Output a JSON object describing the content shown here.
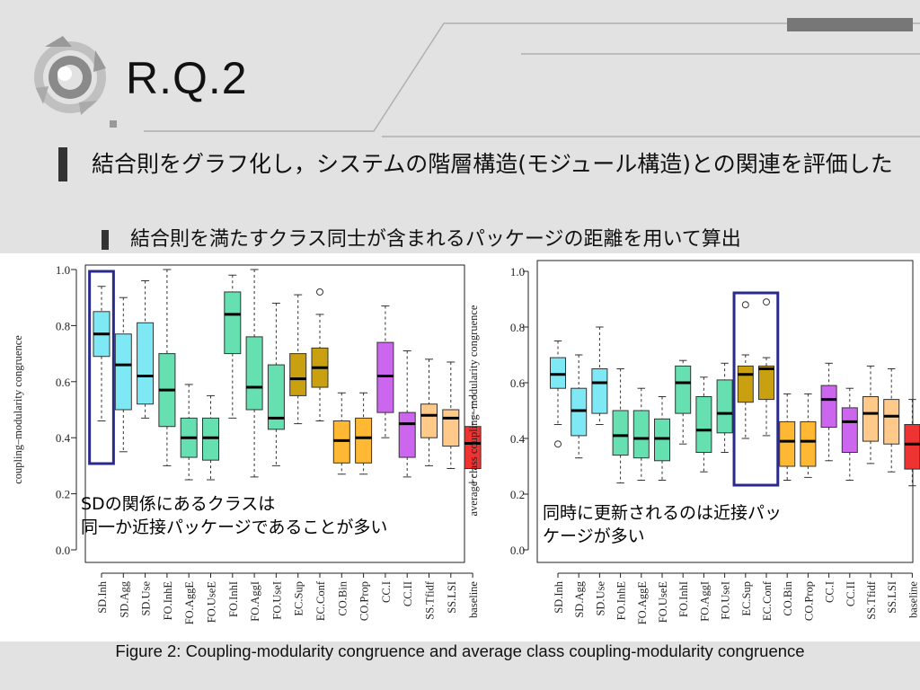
{
  "slide": {
    "title": "R.Q.2",
    "bullet1": "結合則をグラフ化し，システムの階層構造(モジュール構造)との関連を評価した",
    "bullet2": "結合則を満たすクラス同士が含まれるパッケージの距離を用いて算出",
    "caption": "Figure 2: Coupling-modularity congruence and average class coupling-modularity congruence",
    "annotation_left_line1": "SDの関係にあるクラスは",
    "annotation_left_line2": "同一か近接パッケージであることが多い",
    "annotation_right_line1": "同時に更新されるのは近接パッ",
    "annotation_right_line2": "ケージが多い"
  },
  "colors": {
    "SD": "#7fe8f5",
    "FO": "#66e0b0",
    "EC": "#c8a010",
    "CO": "#ffb833",
    "CC": "#cc66ee",
    "SS": "#ffc98a",
    "baseline": "#ee3333",
    "highlight": "#2a2a8a"
  },
  "chart_data": [
    {
      "type": "box",
      "ylabel": "coupling–modularity congruence",
      "ylim": [
        0.0,
        1.0
      ],
      "yticks": [
        "0.0",
        "0.2",
        "0.4",
        "0.6",
        "0.8",
        "1.0"
      ],
      "categories": [
        "SD.Inh",
        "SD.Agg",
        "SD.Use",
        "FO.InhE",
        "FO.AggE",
        "FO.UseE",
        "FO.InhI",
        "FO.AggI",
        "FO.UseI",
        "EC.Sup",
        "EC.Conf",
        "CO.Bin",
        "CO.Prop",
        "CC.I",
        "CC.II",
        "SS.Tfidf",
        "SS.LSI",
        "baseline"
      ],
      "groups": [
        "SD",
        "SD",
        "SD",
        "FO",
        "FO",
        "FO",
        "FO",
        "FO",
        "FO",
        "EC",
        "EC",
        "CO",
        "CO",
        "CC",
        "CC",
        "SS",
        "SS",
        "baseline"
      ],
      "boxes": [
        {
          "min": 0.46,
          "q1": 0.69,
          "median": 0.77,
          "q3": 0.85,
          "max": 0.94,
          "outliers": []
        },
        {
          "min": 0.35,
          "q1": 0.5,
          "median": 0.66,
          "q3": 0.77,
          "max": 0.9,
          "outliers": []
        },
        {
          "min": 0.47,
          "q1": 0.52,
          "median": 0.62,
          "q3": 0.81,
          "max": 0.96,
          "outliers": []
        },
        {
          "min": 0.3,
          "q1": 0.44,
          "median": 0.57,
          "q3": 0.7,
          "max": 1.0,
          "outliers": []
        },
        {
          "min": 0.25,
          "q1": 0.33,
          "median": 0.4,
          "q3": 0.47,
          "max": 0.59,
          "outliers": []
        },
        {
          "min": 0.25,
          "q1": 0.32,
          "median": 0.4,
          "q3": 0.47,
          "max": 0.55,
          "outliers": []
        },
        {
          "min": 0.47,
          "q1": 0.7,
          "median": 0.84,
          "q3": 0.92,
          "max": 0.98,
          "outliers": []
        },
        {
          "min": 0.26,
          "q1": 0.5,
          "median": 0.58,
          "q3": 0.76,
          "max": 1.0,
          "outliers": []
        },
        {
          "min": 0.3,
          "q1": 0.43,
          "median": 0.47,
          "q3": 0.66,
          "max": 0.88,
          "outliers": []
        },
        {
          "min": 0.45,
          "q1": 0.55,
          "median": 0.61,
          "q3": 0.7,
          "max": 0.91,
          "outliers": []
        },
        {
          "min": 0.46,
          "q1": 0.58,
          "median": 0.65,
          "q3": 0.72,
          "max": 0.84,
          "outliers": [
            0.92
          ]
        },
        {
          "min": 0.27,
          "q1": 0.31,
          "median": 0.39,
          "q3": 0.46,
          "max": 0.56,
          "outliers": []
        },
        {
          "min": 0.27,
          "q1": 0.31,
          "median": 0.4,
          "q3": 0.47,
          "max": 0.56,
          "outliers": []
        },
        {
          "min": 0.4,
          "q1": 0.49,
          "median": 0.62,
          "q3": 0.74,
          "max": 0.87,
          "outliers": []
        },
        {
          "min": 0.26,
          "q1": 0.33,
          "median": 0.45,
          "q3": 0.49,
          "max": 0.71,
          "outliers": []
        },
        {
          "min": 0.3,
          "q1": 0.4,
          "median": 0.48,
          "q3": 0.52,
          "max": 0.68,
          "outliers": []
        },
        {
          "min": 0.29,
          "q1": 0.37,
          "median": 0.47,
          "q3": 0.5,
          "max": 0.67,
          "outliers": []
        },
        {
          "min": 0.24,
          "q1": 0.29,
          "median": 0.38,
          "q3": 0.44,
          "max": 0.55,
          "outliers": []
        }
      ],
      "highlight": [
        "SD.Inh"
      ]
    },
    {
      "type": "box",
      "ylabel": "average class coupling–modularity congruence",
      "ylim": [
        0.0,
        1.0
      ],
      "yticks": [
        "0.0",
        "0.2",
        "0.4",
        "0.6",
        "0.8",
        "1.0"
      ],
      "categories": [
        "SD.Inh",
        "SD.Agg",
        "SD.Use",
        "FO.InhE",
        "FO.AggE",
        "FO.UseE",
        "FO.InhI",
        "FO.AggI",
        "FO.UseI",
        "EC.Sup",
        "EC.Conf",
        "CO.Bin",
        "CO.Prop",
        "CC.I",
        "CC.II",
        "SS.Tfidf",
        "SS.LSI",
        "baseline"
      ],
      "groups": [
        "SD",
        "SD",
        "SD",
        "FO",
        "FO",
        "FO",
        "FO",
        "FO",
        "FO",
        "EC",
        "EC",
        "CO",
        "CO",
        "CC",
        "CC",
        "SS",
        "SS",
        "baseline"
      ],
      "boxes": [
        {
          "min": 0.45,
          "q1": 0.58,
          "median": 0.63,
          "q3": 0.69,
          "max": 0.75,
          "outliers": [
            0.38
          ]
        },
        {
          "min": 0.33,
          "q1": 0.41,
          "median": 0.5,
          "q3": 0.58,
          "max": 0.7,
          "outliers": []
        },
        {
          "min": 0.45,
          "q1": 0.49,
          "median": 0.6,
          "q3": 0.65,
          "max": 0.8,
          "outliers": []
        },
        {
          "min": 0.24,
          "q1": 0.34,
          "median": 0.41,
          "q3": 0.5,
          "max": 0.65,
          "outliers": []
        },
        {
          "min": 0.25,
          "q1": 0.33,
          "median": 0.4,
          "q3": 0.5,
          "max": 0.58,
          "outliers": []
        },
        {
          "min": 0.25,
          "q1": 0.32,
          "median": 0.4,
          "q3": 0.47,
          "max": 0.55,
          "outliers": []
        },
        {
          "min": 0.38,
          "q1": 0.49,
          "median": 0.6,
          "q3": 0.66,
          "max": 0.68,
          "outliers": []
        },
        {
          "min": 0.28,
          "q1": 0.35,
          "median": 0.43,
          "q3": 0.55,
          "max": 0.62,
          "outliers": []
        },
        {
          "min": 0.35,
          "q1": 0.42,
          "median": 0.49,
          "q3": 0.61,
          "max": 0.67,
          "outliers": []
        },
        {
          "min": 0.4,
          "q1": 0.53,
          "median": 0.63,
          "q3": 0.66,
          "max": 0.7,
          "outliers": [
            0.88
          ]
        },
        {
          "min": 0.41,
          "q1": 0.54,
          "median": 0.65,
          "q3": 0.66,
          "max": 0.69,
          "outliers": [
            0.89
          ]
        },
        {
          "min": 0.25,
          "q1": 0.3,
          "median": 0.39,
          "q3": 0.46,
          "max": 0.56,
          "outliers": []
        },
        {
          "min": 0.26,
          "q1": 0.3,
          "median": 0.39,
          "q3": 0.46,
          "max": 0.56,
          "outliers": []
        },
        {
          "min": 0.32,
          "q1": 0.44,
          "median": 0.54,
          "q3": 0.59,
          "max": 0.67,
          "outliers": []
        },
        {
          "min": 0.25,
          "q1": 0.35,
          "median": 0.46,
          "q3": 0.51,
          "max": 0.58,
          "outliers": []
        },
        {
          "min": 0.31,
          "q1": 0.39,
          "median": 0.49,
          "q3": 0.55,
          "max": 0.66,
          "outliers": []
        },
        {
          "min": 0.28,
          "q1": 0.38,
          "median": 0.48,
          "q3": 0.54,
          "max": 0.65,
          "outliers": []
        },
        {
          "min": 0.23,
          "q1": 0.29,
          "median": 0.38,
          "q3": 0.45,
          "max": 0.54,
          "outliers": []
        }
      ],
      "highlight": [
        "EC.Sup",
        "EC.Conf"
      ]
    }
  ]
}
